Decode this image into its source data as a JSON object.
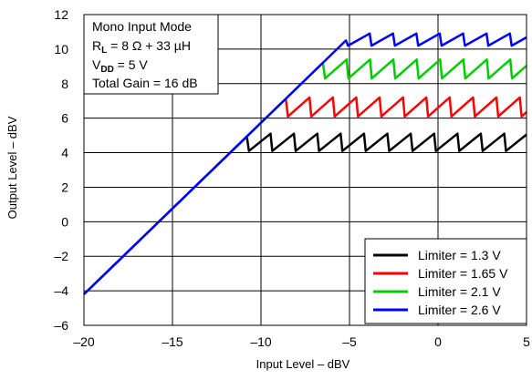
{
  "chart_data": {
    "type": "line",
    "xlabel": "Input Level – dBV",
    "ylabel": "Output Level – dBV",
    "xlim": [
      -20,
      5
    ],
    "ylim": [
      -6,
      12
    ],
    "xticks": [
      -20,
      -15,
      -10,
      -5,
      0,
      5
    ],
    "yticks": [
      -6,
      -4,
      -2,
      0,
      2,
      4,
      6,
      8,
      10,
      12
    ],
    "xtick_labels": [
      "–20",
      "–15",
      "–10",
      "–5",
      "0",
      "5"
    ],
    "ytick_labels": [
      "–6",
      "–4",
      "–2",
      "0",
      "2",
      "4",
      "6",
      "8",
      "10",
      "12"
    ],
    "grid": true,
    "annotation": {
      "line1": "Mono Input Mode",
      "line2_main": "R",
      "line2_sub": "L",
      "line2_rest": " = 8 Ω + 33 µH",
      "line3_main": "V",
      "line3_sub": "DD",
      "line3_rest": " = 5 V",
      "line4": "Total Gain = 16 dB"
    },
    "legend_position": "bottom-right",
    "series": [
      {
        "name": "Limiter = 1.3 V",
        "color": "#000000",
        "knee_x": -10.8,
        "knee_y": 4.6,
        "low": 4.1,
        "high": 5.1,
        "period": 1.22
      },
      {
        "name": "Limiter = 1.65 V",
        "color": "#ff0000",
        "knee_x": -8.6,
        "knee_y": 6.6,
        "low": 6.1,
        "high": 7.2,
        "period": 1.22
      },
      {
        "name": "Limiter = 2.1 V",
        "color": "#00cc00",
        "knee_x": -6.5,
        "knee_y": 8.8,
        "low": 8.3,
        "high": 9.4,
        "period": 1.22
      },
      {
        "name": "Limiter = 2.6 V",
        "color": "#0000ff",
        "knee_x": -5.2,
        "knee_y": 10.5,
        "low": 10.2,
        "high": 10.9,
        "period": 1.22
      }
    ]
  }
}
